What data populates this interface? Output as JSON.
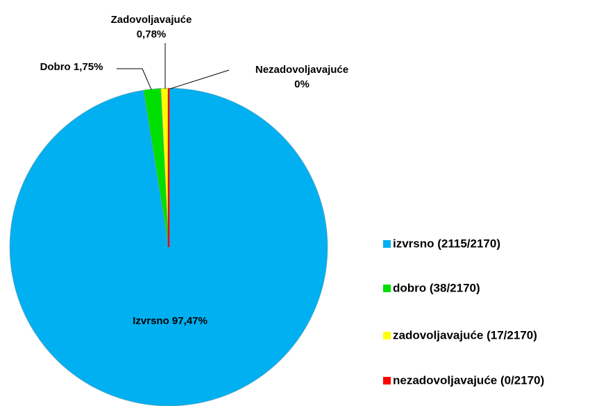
{
  "chart_data": {
    "type": "pie",
    "categories": [
      "Izvrsno",
      "Dobro",
      "Zadovoljavajuće",
      "Nezadovoljavajuće"
    ],
    "series": [
      {
        "name": "izvrsno (2115/2170)",
        "color": "#00b0f0"
      },
      {
        "name": "dobro (38/2170)",
        "color": "#00e000"
      },
      {
        "name": "zadovoljavajuće (17/2170)",
        "color": "#ffff00"
      },
      {
        "name": "nezadovoljavajuće (0/2170)",
        "color": "#ff0000"
      }
    ],
    "values": [
      97.47,
      1.75,
      0.78,
      0
    ],
    "value_labels": [
      "Izvrsno  97,47%",
      "Dobro 1,75%",
      "Zadovoljavajuće\n0,78%",
      "Nezadovoljavajuće\n0%"
    ],
    "legend": "right"
  }
}
